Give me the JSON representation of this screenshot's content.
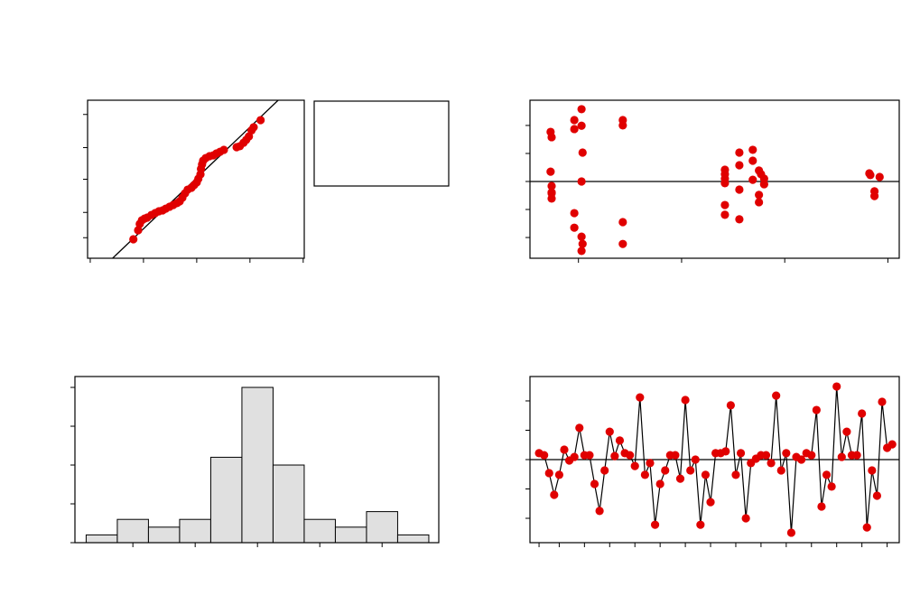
{
  "chart_data": [
    {
      "type": "probability",
      "color": "#e00000",
      "line_color": "#000000",
      "x": [
        -1.19,
        -1.1,
        -1.07,
        -1.03,
        -0.98,
        -0.93,
        -0.85,
        -0.78,
        -0.71,
        -0.64,
        -0.58,
        -0.51,
        -0.44,
        -0.37,
        -0.32,
        -0.27,
        -0.22,
        -0.17,
        -0.1,
        -0.05,
        0.0,
        0.03,
        0.07,
        0.08,
        0.1,
        0.12,
        0.17,
        0.24,
        0.31,
        0.37,
        0.44,
        0.51,
        0.75,
        0.81,
        0.88,
        0.93,
        0.98,
        1.03,
        1.07,
        1.2
      ],
      "y": [
        12.0,
        17.7,
        21.7,
        24.0,
        25.1,
        25.7,
        27.4,
        28.6,
        29.7,
        30.3,
        31.4,
        32.6,
        33.7,
        34.9,
        36.0,
        38.3,
        41.1,
        43.4,
        44.6,
        46.3,
        48.0,
        50.3,
        53.1,
        56.6,
        59.4,
        61.7,
        63.4,
        64.6,
        65.1,
        66.3,
        67.4,
        68.6,
        70.3,
        70.9,
        73.1,
        74.9,
        77.1,
        80.9,
        82.9,
        87.4
      ],
      "reference_line": {
        "x": [
          -1.58,
          1.53
        ],
        "y": [
          0,
          100
        ]
      },
      "xlim": [
        -2.05,
        2.02
      ],
      "xticks": [
        -2,
        -1,
        0,
        1,
        2
      ],
      "ylim": [
        0,
        100
      ],
      "yticks": [
        13,
        29,
        50,
        70,
        91
      ]
    },
    {
      "type": "scatter",
      "color": "#e00000",
      "line_color": "#000000",
      "reference_y": 0,
      "x": [
        0.73,
        0.74,
        0.73,
        0.74,
        0.74,
        0.74,
        0.74,
        1.03,
        0.96,
        1.03,
        0.96,
        1.04,
        1.03,
        0.96,
        0.96,
        1.03,
        1.04,
        1.03,
        1.43,
        1.43,
        1.43,
        1.43,
        2.42,
        2.42,
        2.42,
        2.42,
        2.42,
        2.42,
        2.56,
        2.56,
        2.56,
        2.56,
        2.69,
        2.69,
        2.75,
        2.69,
        2.77,
        2.8,
        2.8,
        2.75,
        2.75,
        3.82,
        3.83,
        3.92,
        3.87,
        3.87
      ],
      "y": [
        1.77,
        1.58,
        0.35,
        -0.16,
        -0.39,
        -0.42,
        -0.61,
        2.58,
        2.19,
        1.99,
        1.87,
        1.03,
        0,
        -1.13,
        -1.65,
        -1.97,
        -2.23,
        -2.48,
        2.19,
        2.0,
        -1.45,
        -2.23,
        0.42,
        0.26,
        0.1,
        -0.06,
        -0.84,
        -1.19,
        1.03,
        0.58,
        -0.29,
        -1.35,
        1.13,
        0.74,
        0.39,
        0.06,
        0.26,
        0.1,
        -0.1,
        -0.48,
        -0.74,
        0.29,
        0.23,
        0.16,
        -0.35,
        -0.52
      ],
      "xlim": [
        0.53,
        4.11
      ],
      "xticks": [
        1,
        2,
        3,
        4
      ],
      "ylim": [
        -2.74,
        2.9
      ],
      "yticks": [
        -2,
        -1,
        0,
        1,
        2
      ]
    },
    {
      "type": "histogram",
      "color": "#e0e0e0",
      "line_color": "#000000",
      "bins": [
        -2.75,
        -2.25,
        -1.75,
        -1.25,
        -0.75,
        -0.25,
        0.25,
        0.75,
        1.25,
        1.75,
        2.25,
        2.75
      ],
      "values": [
        1,
        3,
        2,
        3,
        11,
        20,
        10,
        3,
        2,
        4,
        1
      ],
      "xlim": [
        -2.93,
        2.91
      ],
      "xticks": [
        -2,
        -1,
        0,
        1,
        2
      ],
      "ylim": [
        0,
        21.4
      ],
      "yticks": [
        0,
        5,
        10,
        15,
        20
      ]
    },
    {
      "type": "line",
      "color": "#e00000",
      "line_color": "#000000",
      "reference_y": 0,
      "x": [
        1,
        2,
        3,
        4,
        5,
        6,
        7,
        8,
        9,
        10,
        11,
        12,
        13,
        14,
        15,
        16,
        17,
        18,
        19,
        20,
        21,
        22,
        23,
        24,
        25,
        26,
        27,
        28,
        29,
        30,
        31,
        32,
        33,
        34,
        35,
        36,
        37,
        38,
        39,
        40,
        41,
        42,
        43,
        44,
        45,
        46,
        47,
        48,
        49,
        50,
        51,
        52,
        53,
        54,
        55,
        56,
        57,
        58,
        59,
        60,
        61,
        62,
        63,
        64,
        65,
        66,
        67,
        68,
        69,
        70,
        71
      ],
      "values": [
        0.22,
        0.15,
        -0.46,
        -1.2,
        -0.52,
        0.34,
        -0.03,
        0.09,
        1.08,
        0.15,
        0.15,
        -0.83,
        -1.75,
        -0.37,
        0.95,
        0.12,
        0.65,
        0.22,
        0.15,
        -0.22,
        2.12,
        -0.52,
        -0.12,
        -2.22,
        -0.83,
        -0.37,
        0.15,
        0.15,
        -0.65,
        2.03,
        -0.37,
        0,
        -2.22,
        -0.52,
        -1.45,
        0.22,
        0.22,
        0.28,
        1.85,
        -0.52,
        0.22,
        -2.0,
        -0.12,
        0.03,
        0.15,
        0.15,
        -0.12,
        2.18,
        -0.37,
        0.22,
        -2.49,
        0.09,
        0,
        0.22,
        0.15,
        1.69,
        -1.6,
        -0.52,
        -0.92,
        2.49,
        0.09,
        0.95,
        0.15,
        0.15,
        1.57,
        -2.31,
        -0.37,
        -1.23,
        1.97,
        0.4,
        0.52
      ],
      "xlim": [
        -0.8,
        72.4
      ],
      "xticks": [
        1,
        5,
        10,
        15,
        20,
        25,
        30,
        35,
        40,
        45,
        50,
        55,
        60,
        65,
        70
      ],
      "ylim": [
        -2.83,
        2.83
      ],
      "yticks": [
        -2,
        -1,
        0,
        1,
        2
      ]
    }
  ]
}
